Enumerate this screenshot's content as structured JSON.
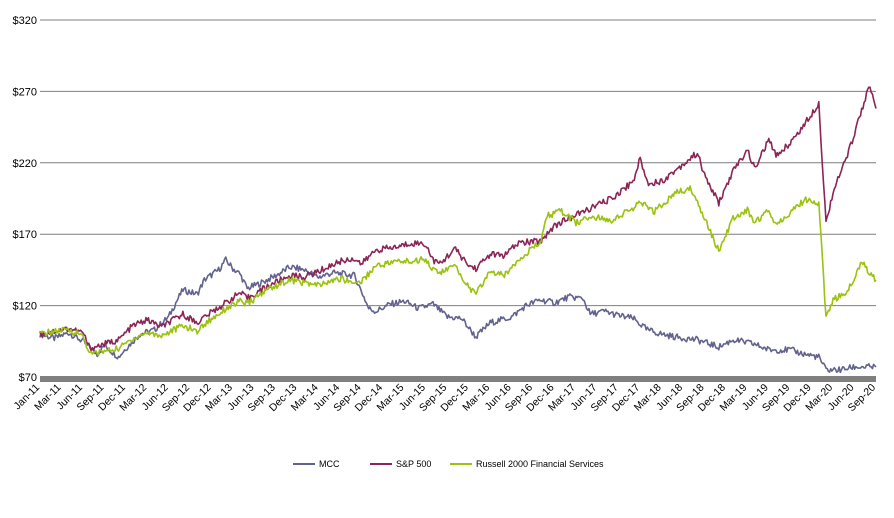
{
  "colors": {
    "mcc": "#62628f",
    "sp500": "#8c2455",
    "russell": "#9ac20f",
    "grid": "#7f7f7f",
    "axis_band": "#7f7f7f"
  },
  "chart_data": {
    "type": "line",
    "title": "",
    "xlabel": "",
    "ylabel": "",
    "ylim": [
      70,
      320
    ],
    "y_ticks": [
      "$70",
      "$120",
      "$170",
      "$220",
      "$270",
      "$320"
    ],
    "y_tick_values": [
      70,
      120,
      170,
      220,
      270,
      320
    ],
    "grid": true,
    "legend_position": "bottom",
    "x_range": [
      "2011-01",
      "2020-10"
    ],
    "x_ticks": [
      "Jan-11",
      "Mar-11",
      "Jun-11",
      "Sep-11",
      "Dec-11",
      "Mar-12",
      "Jun-12",
      "Sep-12",
      "Dec-12",
      "Mar-13",
      "Jun-13",
      "Sep-13",
      "Dec-13",
      "Mar-14",
      "Jun-14",
      "Sep-14",
      "Dec-14",
      "Mar-15",
      "Jun-15",
      "Sep-15",
      "Dec-15",
      "Mar-16",
      "Jun-16",
      "Sep-16",
      "Dec-16",
      "Mar-17",
      "Jun-17",
      "Sep-17",
      "Dec-17",
      "Mar-18",
      "Jun-18",
      "Sep-18",
      "Dec-18",
      "Mar-19",
      "Jun-19",
      "Sep-19",
      "Dec-19",
      "Mar-20",
      "Jun-20",
      "Sep-20"
    ],
    "series": [
      {
        "name": "MCC",
        "color_key": "mcc",
        "points": [
          [
            "2011-01",
            100
          ],
          [
            "2011-03",
            97
          ],
          [
            "2011-05",
            101
          ],
          [
            "2011-07",
            95
          ],
          [
            "2011-09",
            86
          ],
          [
            "2011-10",
            92
          ],
          [
            "2011-12",
            84
          ],
          [
            "2012-01",
            90
          ],
          [
            "2012-03",
            100
          ],
          [
            "2012-05",
            103
          ],
          [
            "2012-07",
            112
          ],
          [
            "2012-08",
            122
          ],
          [
            "2012-09",
            131
          ],
          [
            "2012-11",
            128
          ],
          [
            "2012-12",
            138
          ],
          [
            "2013-02",
            145
          ],
          [
            "2013-03",
            152
          ],
          [
            "2013-04",
            146
          ],
          [
            "2013-05",
            142
          ],
          [
            "2013-06",
            132
          ],
          [
            "2013-08",
            136
          ],
          [
            "2013-10",
            141
          ],
          [
            "2013-12",
            147
          ],
          [
            "2014-02",
            145
          ],
          [
            "2014-04",
            140
          ],
          [
            "2014-06",
            143
          ],
          [
            "2014-09",
            141
          ],
          [
            "2014-10",
            130
          ],
          [
            "2014-11",
            118
          ],
          [
            "2014-12",
            116
          ],
          [
            "2015-02",
            121
          ],
          [
            "2015-04",
            123
          ],
          [
            "2015-06",
            118
          ],
          [
            "2015-08",
            121
          ],
          [
            "2015-10",
            112
          ],
          [
            "2015-12",
            111
          ],
          [
            "2016-02",
            98
          ],
          [
            "2016-04",
            108
          ],
          [
            "2016-07",
            112
          ],
          [
            "2016-09",
            120
          ],
          [
            "2016-11",
            124
          ],
          [
            "2017-01",
            122
          ],
          [
            "2017-03",
            126
          ],
          [
            "2017-05",
            125
          ],
          [
            "2017-06",
            114
          ],
          [
            "2017-08",
            116
          ],
          [
            "2017-10",
            113
          ],
          [
            "2017-12",
            111
          ],
          [
            "2018-02",
            103
          ],
          [
            "2018-04",
            100
          ],
          [
            "2018-06",
            98
          ],
          [
            "2018-09",
            96
          ],
          [
            "2018-12",
            91
          ],
          [
            "2019-02",
            96
          ],
          [
            "2019-05",
            93
          ],
          [
            "2019-07",
            89
          ],
          [
            "2019-10",
            89
          ],
          [
            "2019-12",
            86
          ],
          [
            "2020-02",
            84
          ],
          [
            "2020-03",
            75
          ],
          [
            "2020-05",
            75
          ],
          [
            "2020-07",
            77
          ],
          [
            "2020-10",
            77
          ]
        ]
      },
      {
        "name": "S&P 500",
        "color_key": "sp500",
        "points": [
          [
            "2011-01",
            100
          ],
          [
            "2011-03",
            102
          ],
          [
            "2011-05",
            104
          ],
          [
            "2011-07",
            101
          ],
          [
            "2011-08",
            90
          ],
          [
            "2011-10",
            93
          ],
          [
            "2011-12",
            96
          ],
          [
            "2012-02",
            106
          ],
          [
            "2012-04",
            110
          ],
          [
            "2012-06",
            105
          ],
          [
            "2012-09",
            114
          ],
          [
            "2012-11",
            108
          ],
          [
            "2012-12",
            112
          ],
          [
            "2013-03",
            122
          ],
          [
            "2013-05",
            129
          ],
          [
            "2013-06",
            125
          ],
          [
            "2013-09",
            134
          ],
          [
            "2013-12",
            141
          ],
          [
            "2014-02",
            140
          ],
          [
            "2014-04",
            144
          ],
          [
            "2014-07",
            151
          ],
          [
            "2014-09",
            153
          ],
          [
            "2014-10",
            149
          ],
          [
            "2014-12",
            159
          ],
          [
            "2015-03",
            161
          ],
          [
            "2015-05",
            164
          ],
          [
            "2015-07",
            163
          ],
          [
            "2015-08",
            152
          ],
          [
            "2015-09",
            149
          ],
          [
            "2015-11",
            160
          ],
          [
            "2016-01",
            148
          ],
          [
            "2016-02",
            146
          ],
          [
            "2016-04",
            156
          ],
          [
            "2016-06",
            155
          ],
          [
            "2016-08",
            164
          ],
          [
            "2016-11",
            165
          ],
          [
            "2017-01",
            176
          ],
          [
            "2017-03",
            181
          ],
          [
            "2017-06",
            188
          ],
          [
            "2017-09",
            195
          ],
          [
            "2017-12",
            207
          ],
          [
            "2018-01",
            223
          ],
          [
            "2018-02",
            206
          ],
          [
            "2018-04",
            207
          ],
          [
            "2018-06",
            215
          ],
          [
            "2018-09",
            227
          ],
          [
            "2018-10",
            211
          ],
          [
            "2018-12",
            192
          ],
          [
            "2019-02",
            214
          ],
          [
            "2019-04",
            229
          ],
          [
            "2019-05",
            216
          ],
          [
            "2019-07",
            236
          ],
          [
            "2019-08",
            225
          ],
          [
            "2019-10",
            234
          ],
          [
            "2019-12",
            247
          ],
          [
            "2020-02",
            262
          ],
          [
            "2020-03",
            178
          ],
          [
            "2020-04",
            200
          ],
          [
            "2020-06",
            225
          ],
          [
            "2020-08",
            257
          ],
          [
            "2020-09",
            274
          ],
          [
            "2020-10",
            258
          ]
        ]
      },
      {
        "name": "Russell 2000 Financial Services",
        "color_key": "russell",
        "points": [
          [
            "2011-01",
            100
          ],
          [
            "2011-03",
            102
          ],
          [
            "2011-05",
            103
          ],
          [
            "2011-07",
            99
          ],
          [
            "2011-08",
            86
          ],
          [
            "2011-10",
            88
          ],
          [
            "2011-12",
            90
          ],
          [
            "2012-02",
            97
          ],
          [
            "2012-04",
            101
          ],
          [
            "2012-06",
            99
          ],
          [
            "2012-09",
            106
          ],
          [
            "2012-11",
            102
          ],
          [
            "2012-12",
            107
          ],
          [
            "2013-03",
            118
          ],
          [
            "2013-05",
            123
          ],
          [
            "2013-06",
            121
          ],
          [
            "2013-09",
            132
          ],
          [
            "2013-12",
            138
          ],
          [
            "2014-02",
            136
          ],
          [
            "2014-04",
            134
          ],
          [
            "2014-07",
            139
          ],
          [
            "2014-09",
            136
          ],
          [
            "2014-10",
            137
          ],
          [
            "2014-12",
            148
          ],
          [
            "2015-03",
            151
          ],
          [
            "2015-05",
            151
          ],
          [
            "2015-07",
            153
          ],
          [
            "2015-08",
            145
          ],
          [
            "2015-09",
            143
          ],
          [
            "2015-11",
            148
          ],
          [
            "2016-01",
            133
          ],
          [
            "2016-02",
            128
          ],
          [
            "2016-04",
            144
          ],
          [
            "2016-06",
            141
          ],
          [
            "2016-08",
            153
          ],
          [
            "2016-11",
            164
          ],
          [
            "2016-12",
            183
          ],
          [
            "2017-02",
            186
          ],
          [
            "2017-04",
            178
          ],
          [
            "2017-06",
            182
          ],
          [
            "2017-09",
            180
          ],
          [
            "2017-12",
            188
          ],
          [
            "2018-01",
            192
          ],
          [
            "2018-03",
            186
          ],
          [
            "2018-06",
            199
          ],
          [
            "2018-08",
            202
          ],
          [
            "2018-10",
            182
          ],
          [
            "2018-12",
            158
          ],
          [
            "2019-02",
            181
          ],
          [
            "2019-04",
            187
          ],
          [
            "2019-05",
            178
          ],
          [
            "2019-07",
            187
          ],
          [
            "2019-08",
            177
          ],
          [
            "2019-10",
            185
          ],
          [
            "2019-12",
            194
          ],
          [
            "2020-02",
            192
          ],
          [
            "2020-03",
            112
          ],
          [
            "2020-04",
            124
          ],
          [
            "2020-06",
            130
          ],
          [
            "2020-07",
            140
          ],
          [
            "2020-08",
            152
          ],
          [
            "2020-09",
            143
          ],
          [
            "2020-10",
            138
          ]
        ]
      }
    ]
  }
}
